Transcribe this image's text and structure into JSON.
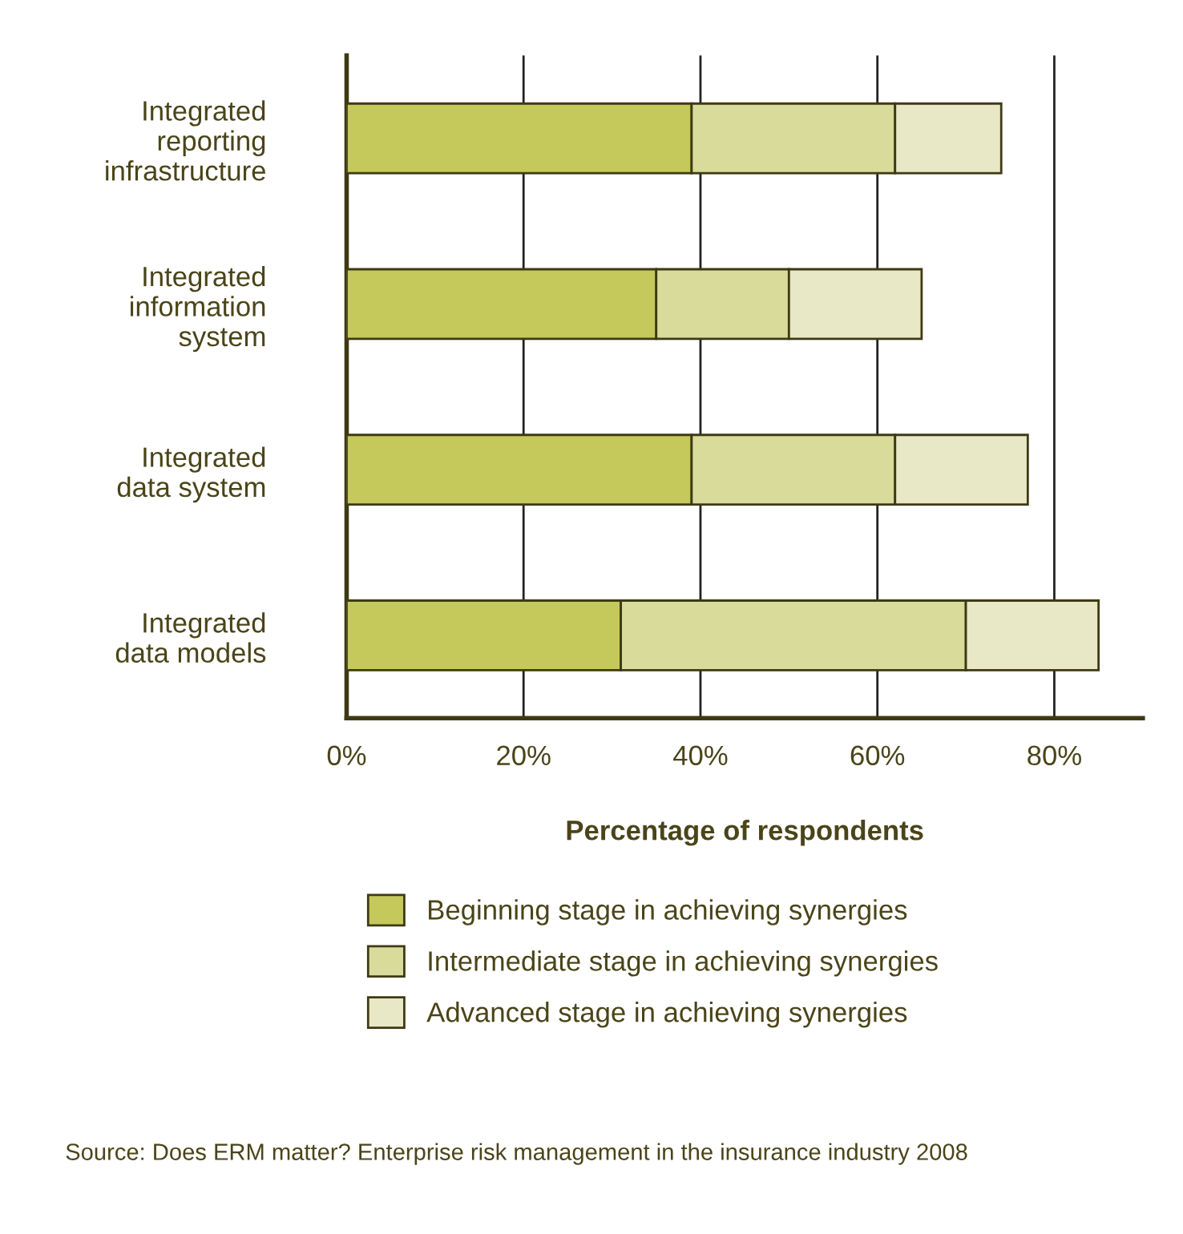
{
  "chart_data": {
    "type": "bar",
    "orientation": "horizontal",
    "stacked": true,
    "categories": [
      "Integrated\nreporting\ninfrastructure",
      "Integrated\ninformation\nsystem",
      "Integrated\ndata system",
      "Integrated\ndata models"
    ],
    "series": [
      {
        "name": "Beginning stage in achieving synergies",
        "color": "#c5c85a",
        "values": [
          39,
          35,
          39,
          31
        ]
      },
      {
        "name": "Intermediate stage in achieving synergies",
        "color": "#d9db9b",
        "values": [
          23,
          15,
          23,
          39
        ]
      },
      {
        "name": "Advanced stage in achieving synergies",
        "color": "#e8e8c6",
        "values": [
          12,
          15,
          15,
          15
        ]
      }
    ],
    "xlim": [
      0,
      90
    ],
    "xticks": [
      {
        "value": 0,
        "label": "0%"
      },
      {
        "value": 20,
        "label": "20%"
      },
      {
        "value": 40,
        "label": "40%"
      },
      {
        "value": 60,
        "label": "60%"
      },
      {
        "value": 80,
        "label": "80%"
      }
    ],
    "xlabel": "Percentage of respondents",
    "grid": "x",
    "legend": "bottom",
    "annotations": [
      "Source: Does ERM matter? Enterprise risk management in the insurance industry 2008"
    ]
  }
}
